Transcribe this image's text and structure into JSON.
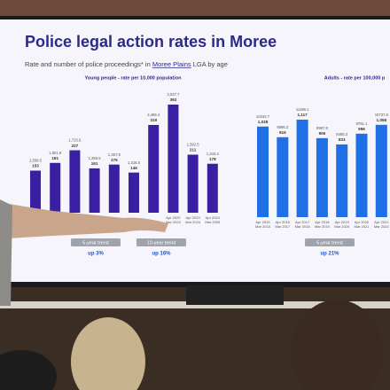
{
  "title": "Police legal action rates in Moree",
  "subtitle": {
    "before": "Rate and number of police proceedings* in ",
    "link": "Moree Plains",
    "after": " LGA by age"
  },
  "chart_data": [
    {
      "type": "bar",
      "title": "Young people - rate per 10,000 population",
      "color": "#3b1fa3",
      "categories": [
        null,
        null,
        null,
        null,
        null,
        null,
        null,
        [
          "Apr 2022",
          "Mar 2023"
        ],
        [
          "Apr 2023",
          "Mar 2024"
        ],
        [
          "Apr 2024",
          "Mar 2025"
        ]
      ],
      "values": [
        153,
        181,
        227,
        161,
        175,
        146,
        319,
        393,
        211,
        178
      ],
      "rate_labels": [
        "1,558.5",
        "1,801.9",
        "1,723.6",
        "1,355.5",
        "1,357.9",
        "1,316.5",
        "2,496.4",
        "3,027.7",
        "1,592.5",
        "1,343.4"
      ],
      "trends": [
        {
          "label": "5-year trend",
          "value": "up 3%"
        },
        {
          "label": "10-year trend",
          "value": "up 16%"
        }
      ]
    },
    {
      "type": "bar",
      "title": "Adults - rate per 100,000 p",
      "color": "#1f6fe6",
      "categories": [
        [
          "Apr 2015",
          "Mar 2016"
        ],
        [
          "Apr 2016",
          "Mar 2017"
        ],
        [
          "Apr 2017",
          "Mar 2018"
        ],
        [
          "Apr 2018",
          "Mar 2019"
        ],
        [
          "Apr 2019",
          "Mar 2020"
        ],
        [
          "Apr 2020",
          "Mar 2021"
        ],
        [
          "Apr 2021",
          "Mar 2022"
        ]
      ],
      "values": [
        1038,
        916,
        1117,
        905,
        833,
        956,
        1058
      ],
      "value_labels": [
        "1,038",
        "916",
        "1,117",
        "905",
        "833",
        "956",
        "1,058"
      ],
      "rate_labels": [
        "10242.7",
        "9096.3",
        "11199.1",
        "8987.8",
        "8485.3",
        "9761.1",
        "10737.8"
      ],
      "trends": [
        {
          "label": "5-year trend",
          "value": "up 21%"
        }
      ]
    }
  ]
}
